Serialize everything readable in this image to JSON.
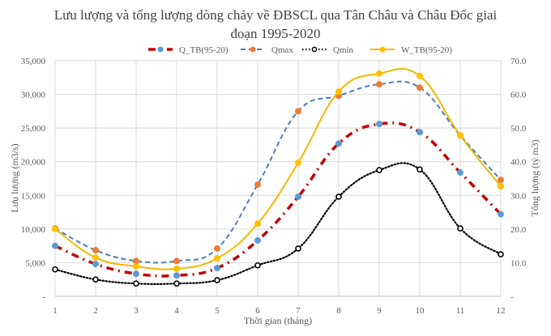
{
  "chart_data": {
    "type": "line",
    "title_line1": "Lưu lượng và tổng lượng dòng chảy về ĐBSCL qua Tân Châu và Châu Đốc giai",
    "title_line2": "đoạn 1995-2020",
    "xlabel": "Thời gian (tháng)",
    "ylabel_left": "Lưu lượng (m3/s)",
    "ylabel_right": "Tổng lượng (tỷ m3)",
    "x": [
      1,
      2,
      3,
      4,
      5,
      6,
      7,
      8,
      9,
      10,
      11,
      12
    ],
    "x_tick_labels": [
      "1",
      "2",
      "3",
      "4",
      "5",
      "6",
      "7",
      "8",
      "9",
      "10",
      "11",
      "12"
    ],
    "ylim_left": [
      0,
      35000
    ],
    "ylim_right": [
      0,
      70
    ],
    "y_ticks_left": [
      "-",
      "5,000",
      "10,000",
      "15,000",
      "20,000",
      "25,000",
      "30,000",
      "35,000"
    ],
    "y_ticks_right": [
      "-",
      "10.0",
      "20.0",
      "30.0",
      "40.0",
      "50.0",
      "60.0",
      "70.0"
    ],
    "grid": true,
    "legend_position": "top",
    "series": [
      {
        "name": "Q_TB(95-20)",
        "axis": "left",
        "line_color": "#C00000",
        "marker_color": "#5B9BD5",
        "style": "dash-dot",
        "values": [
          7500,
          4800,
          3350,
          3100,
          4200,
          8300,
          14800,
          22700,
          25600,
          24400,
          18400,
          12200
        ]
      },
      {
        "name": "Qmax",
        "axis": "left",
        "line_color": "#4A7EBB",
        "marker_color": "#ED7D31",
        "style": "dash",
        "values": [
          10100,
          6850,
          5250,
          5250,
          7100,
          16600,
          27500,
          29800,
          31500,
          31000,
          23900,
          17300
        ]
      },
      {
        "name": "Qmin",
        "axis": "left",
        "line_color": "#000000",
        "marker_color": "#000000",
        "style": "dot",
        "values": [
          4000,
          2500,
          1900,
          1900,
          2400,
          4600,
          7100,
          14800,
          18750,
          18850,
          10100,
          6250
        ]
      },
      {
        "name": "W_TB(95-20)",
        "axis": "right",
        "line_color": "#F2B800",
        "marker_color": "#FFC000",
        "style": "solid",
        "values": [
          20.0,
          11.5,
          8.9,
          8.2,
          11.3,
          21.6,
          39.7,
          60.8,
          66.2,
          65.5,
          47.8,
          32.7
        ]
      }
    ]
  }
}
